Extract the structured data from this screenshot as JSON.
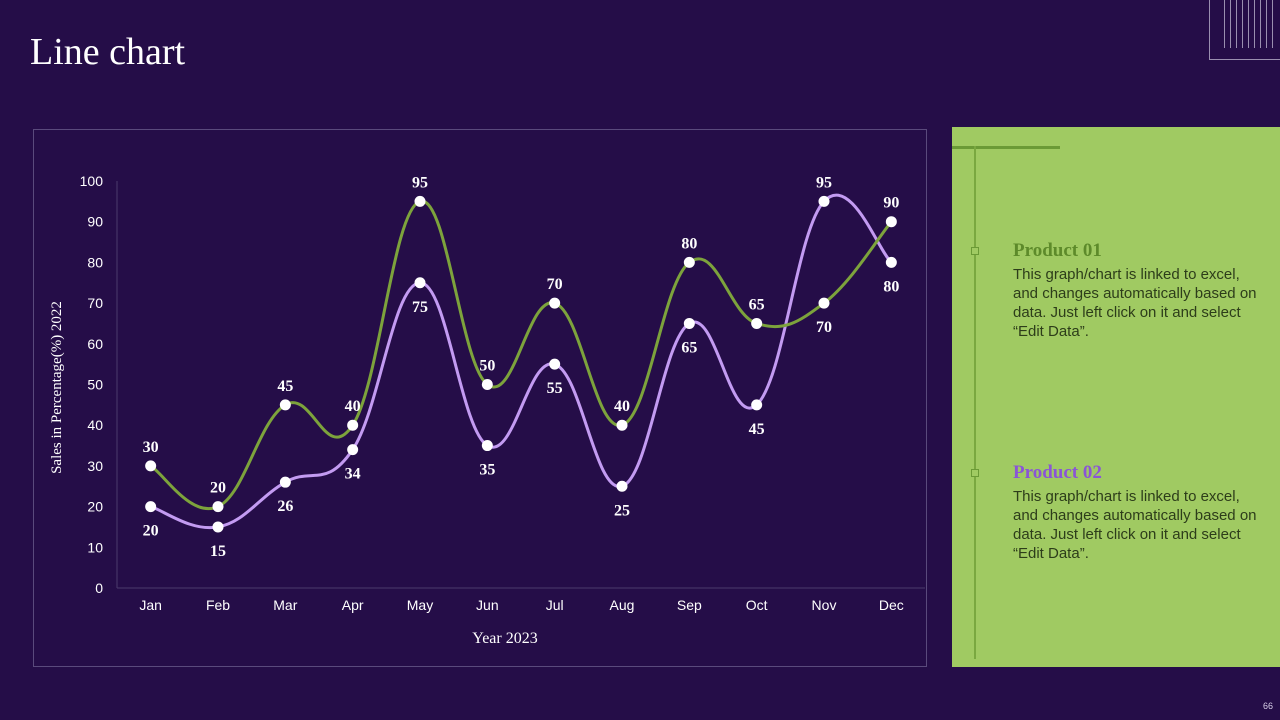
{
  "page": {
    "title": "Line chart",
    "page_number": "66"
  },
  "colors": {
    "background": "#250d48",
    "product1": "#7da33c",
    "product2": "#c39bf2",
    "panel": "#a0ca62"
  },
  "chart_data": {
    "type": "line",
    "categories": [
      "Jan",
      "Feb",
      "Mar",
      "Apr",
      "May",
      "Jun",
      "Jul",
      "Aug",
      "Sep",
      "Oct",
      "Nov",
      "Dec"
    ],
    "series": [
      {
        "name": "Product 01",
        "color": "#7da33c",
        "values": [
          30,
          20,
          45,
          40,
          95,
          50,
          70,
          40,
          80,
          65,
          70,
          90
        ]
      },
      {
        "name": "Product 02",
        "color": "#c39bf2",
        "values": [
          20,
          15,
          26,
          34,
          75,
          35,
          55,
          25,
          65,
          45,
          95,
          80
        ]
      }
    ],
    "ylim": [
      0,
      100
    ],
    "yticks": [
      0,
      10,
      20,
      30,
      40,
      50,
      60,
      70,
      80,
      90,
      100
    ],
    "ylabel": "Sales in Percentage(%) 2022",
    "xlabel": "Year 2023",
    "grid": false
  },
  "panel": {
    "products": [
      {
        "title": "Product 01",
        "color": "#5d8a2a",
        "description": "This graph/chart is linked to excel, and changes automatically based on data. Just left click on it and select “Edit Data”."
      },
      {
        "title": "Product 02",
        "color": "#8a55d6",
        "description": "This graph/chart is linked to excel, and changes automatically based on data. Just left click on it and select “Edit Data”."
      }
    ]
  }
}
